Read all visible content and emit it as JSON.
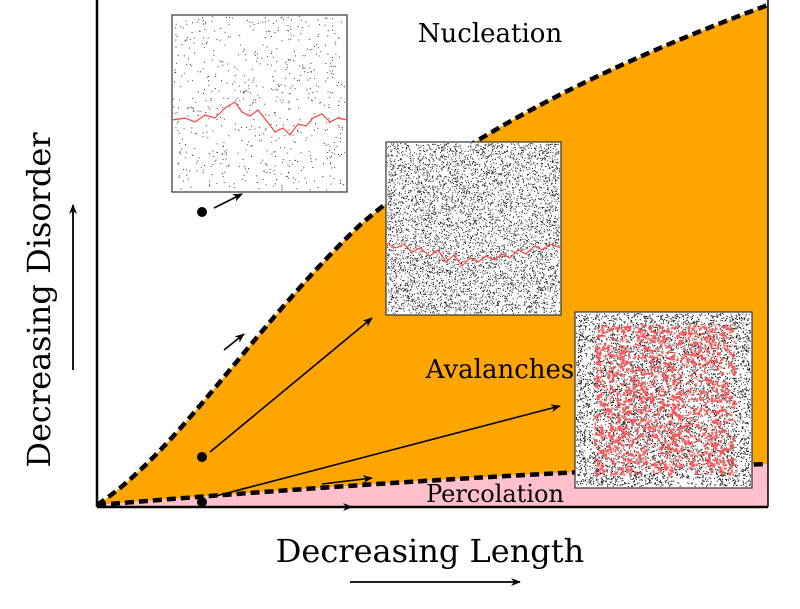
{
  "regions": {
    "nucleation": "Nucleation",
    "avalanches": "Avalanches",
    "percolation": "Percolation"
  },
  "axes": {
    "x_label": "Decreasing Length",
    "y_label": "Decreasing Disorder"
  },
  "colors": {
    "avalanches_fill": "#ffa500",
    "percolation_fill": "#ffc0cb",
    "crack_line": "#ff4040",
    "boundary": "#000000"
  }
}
